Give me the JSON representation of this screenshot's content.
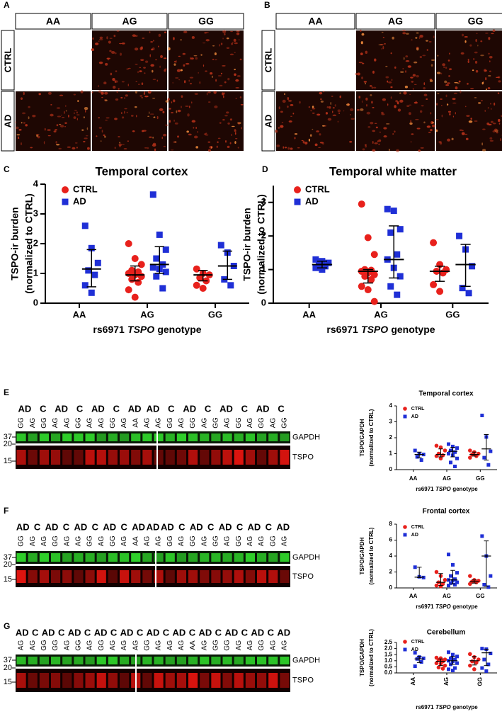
{
  "micrographs": [
    {
      "letter": "A",
      "columns": [
        "AA",
        "AG",
        "GG"
      ],
      "rows": [
        "CTRL",
        "AD"
      ]
    },
    {
      "letter": "B",
      "columns": [
        "AA",
        "AG",
        "GG"
      ],
      "rows": [
        "CTRL",
        "AD"
      ]
    }
  ],
  "blots": [
    {
      "letter": "E",
      "groups": [
        "AD",
        "C",
        "AD",
        "C",
        "AD",
        "C",
        "AD",
        "AD",
        "C",
        "AD",
        "C",
        "AD",
        "C",
        "AD",
        "C"
      ],
      "lanes": [
        "GG",
        "AG",
        "GG",
        "AG",
        "AG",
        "GG",
        "AG",
        "AG",
        "GG",
        "AG",
        "AA",
        "AG",
        "AG",
        "GG",
        "AG",
        "GG",
        "AG",
        "GG",
        "AG",
        "GG",
        "AG",
        "GG",
        "AG",
        "GG"
      ],
      "markers": [
        "37",
        "20",
        "15"
      ],
      "bands": [
        "GAPDH",
        "TSPO"
      ]
    },
    {
      "letter": "F",
      "groups": [
        "AD",
        "C",
        "AD",
        "C",
        "AD",
        "C",
        "AD",
        "C",
        "AD",
        "AD",
        "AD",
        "C",
        "AD",
        "C",
        "AD",
        "C",
        "AD",
        "C",
        "AD"
      ],
      "lanes": [
        "GG",
        "AG",
        "AG",
        "GG",
        "AG",
        "AG",
        "GG",
        "AG",
        "GG",
        "AG",
        "AA",
        "AG",
        "AG",
        "GG",
        "AG",
        "GG",
        "AG",
        "GG",
        "AG",
        "GG",
        "AG",
        "AG",
        "GG",
        "AG"
      ],
      "markers": [
        "37",
        "20",
        "15"
      ],
      "bands": [
        "GAPDH",
        "TSPO"
      ]
    },
    {
      "letter": "G",
      "groups": [
        "AD",
        "C",
        "AD",
        "C",
        "AD",
        "C",
        "AD",
        "C",
        "AD",
        "C",
        "AD",
        "C",
        "AD",
        "C",
        "AD",
        "C",
        "AD",
        "C",
        "AD",
        "C",
        "AD"
      ],
      "lanes": [
        "AG",
        "AG",
        "GG",
        "GG",
        "AG",
        "GG",
        "AG",
        "GG",
        "AG",
        "AG",
        "AG",
        "GG",
        "AG",
        "AG",
        "AG",
        "AA",
        "AG",
        "GG",
        "GG",
        "AG",
        "AG",
        "GG",
        "AG",
        "AG"
      ],
      "markers": [
        "37",
        "20",
        "15"
      ],
      "bands": [
        "GAPDH",
        "TSPO"
      ]
    }
  ],
  "chart_data": [
    {
      "type": "dot",
      "panel": "C",
      "title": "Temporal cortex",
      "ylabel": [
        "TSPO-ir burden",
        "(normalized to CTRL)"
      ],
      "xlabel": [
        "rs6971",
        "TSPO",
        "genotype"
      ],
      "categories": [
        "AA",
        "AG",
        "GG"
      ],
      "ylim": [
        0,
        4
      ],
      "yticks": [
        0,
        1,
        2,
        3,
        4
      ],
      "xrotate": false,
      "series": [
        {
          "name": "CTRL",
          "color": "#e8211c",
          "marker": "circle",
          "values": [
            [],
            [
              2.0,
              1.5,
              1.3,
              1.1,
              1.05,
              1.0,
              0.95,
              0.9,
              0.8,
              0.7,
              0.45,
              0.2
            ],
            [
              1.15,
              1.0,
              0.95,
              0.85,
              0.75,
              0.6,
              0.5
            ]
          ],
          "center": [
            null,
            0.95,
            0.95
          ],
          "lower": [
            null,
            0.75,
            0.75
          ],
          "upper": [
            null,
            1.25,
            1.1
          ]
        },
        {
          "name": "AD",
          "color": "#1f2fd6",
          "marker": "square",
          "values": [
            [
              2.6,
              1.85,
              1.35,
              1.1,
              0.95,
              0.6,
              0.35
            ],
            [
              3.65,
              2.3,
              1.8,
              1.5,
              1.3,
              1.2,
              1.15,
              1.05,
              0.9,
              0.5
            ],
            [
              1.95,
              1.7,
              1.25,
              0.8,
              0.6
            ]
          ],
          "center": [
            1.15,
            1.3,
            1.25
          ],
          "lower": [
            0.55,
            1.0,
            0.8
          ],
          "upper": [
            1.8,
            1.9,
            1.75
          ]
        }
      ]
    },
    {
      "type": "dot",
      "panel": "D",
      "title": "Temporal white matter",
      "ylabel": [
        "TSPO-ir burden",
        "(normalized to CTRL)"
      ],
      "xlabel": [
        "rs6971",
        "TSPO",
        "genotype"
      ],
      "categories": [
        "AA",
        "AG",
        "GG"
      ],
      "ylim": [
        0,
        3.5
      ],
      "yticks": [
        0,
        1,
        2,
        3
      ],
      "xrotate": false,
      "series": [
        {
          "name": "CTRL",
          "color": "#e8211c",
          "marker": "circle",
          "values": [
            [],
            [
              2.95,
              1.95,
              1.45,
              1.0,
              0.98,
              0.95,
              0.9,
              0.85,
              0.8,
              0.7,
              0.5,
              0.4,
              0.05
            ],
            [
              1.8,
              1.15,
              1.0,
              0.95,
              0.9,
              0.55,
              0.35
            ]
          ],
          "center": [
            null,
            0.95,
            0.95
          ],
          "lower": [
            null,
            0.6,
            0.65
          ],
          "upper": [
            null,
            1.0,
            1.1
          ]
        },
        {
          "name": "AD",
          "color": "#1f2fd6",
          "marker": "square",
          "values": [
            [
              1.3,
              1.25,
              1.2,
              1.15,
              1.1,
              1.05,
              1.0
            ],
            [
              2.8,
              2.75,
              2.2,
              2.1,
              1.45,
              1.3,
              1.05,
              0.8,
              0.5,
              0.25
            ],
            [
              2.0,
              1.6,
              1.1,
              0.45,
              0.3
            ]
          ],
          "center": [
            1.15,
            1.3,
            1.15
          ],
          "lower": [
            1.05,
            0.75,
            0.5
          ],
          "upper": [
            1.25,
            2.3,
            1.75
          ]
        }
      ]
    },
    {
      "type": "dot",
      "title": "Temporal cortex",
      "ylabel": [
        "TSPO/GAPDH",
        "(normalized to CTRL)"
      ],
      "xlabel": [
        "rs6971",
        "TSPO",
        "genotype"
      ],
      "categories": [
        "AA",
        "AG",
        "GG"
      ],
      "ylim": [
        0,
        4
      ],
      "yticks": [
        0,
        1,
        2,
        3,
        4
      ],
      "xrotate": false,
      "series": [
        {
          "name": "CTRL",
          "color": "#e8211c",
          "marker": "circle",
          "values": [
            [],
            [
              1.5,
              1.4,
              1.2,
              1.0,
              0.9,
              0.85,
              0.7
            ],
            [
              1.2,
              1.1,
              1.0,
              0.95,
              0.85,
              0.75
            ]
          ],
          "center": [
            null,
            0.95,
            0.95
          ],
          "lower": [
            null,
            0.8,
            0.85
          ],
          "upper": [
            null,
            1.3,
            1.1
          ]
        },
        {
          "name": "AD",
          "color": "#1f2fd6",
          "marker": "square",
          "values": [
            [
              1.2,
              1.0,
              0.95,
              0.8,
              0.6
            ],
            [
              1.6,
              1.45,
              1.35,
              1.2,
              1.1,
              1.0,
              0.9,
              0.7,
              0.45,
              0.2
            ],
            [
              3.4,
              2.05,
              1.15,
              0.75,
              0.3
            ]
          ],
          "center": [
            0.95,
            1.15,
            1.3
          ],
          "lower": [
            0.75,
            0.8,
            0.6
          ],
          "upper": [
            1.1,
            1.4,
            2.2
          ]
        }
      ]
    },
    {
      "type": "dot",
      "title": "Frontal cortex",
      "ylabel": [
        "TSPO/GAPDH",
        "(normalized to CTRL)"
      ],
      "xlabel": [
        "rs6971",
        "TSPO",
        "genotype"
      ],
      "categories": [
        "AA",
        "AG",
        "GG"
      ],
      "ylim": [
        0,
        8
      ],
      "yticks": [
        0,
        2,
        4,
        6,
        8
      ],
      "xrotate": false,
      "series": [
        {
          "name": "CTRL",
          "color": "#e8211c",
          "marker": "circle",
          "values": [
            [],
            [
              2.0,
              1.5,
              1.0,
              0.7,
              0.5,
              0.3,
              0.2
            ],
            [
              1.5,
              1.0,
              0.9,
              0.8,
              0.7,
              0.5
            ]
          ],
          "center": [
            null,
            0.7,
            0.8
          ],
          "lower": [
            null,
            0.3,
            0.6
          ],
          "upper": [
            null,
            1.8,
            1.0
          ]
        },
        {
          "name": "AD",
          "color": "#1f2fd6",
          "marker": "square",
          "values": [
            [
              2.6,
              1.4,
              1.3
            ],
            [
              4.2,
              2.9,
              1.9,
              1.5,
              1.1,
              1.0,
              0.9,
              0.7,
              0.6,
              0.4,
              0.3
            ],
            [
              6.5,
              4.0,
              1.5,
              0.4,
              0.1
            ]
          ],
          "center": [
            1.35,
            1.0,
            4.0
          ],
          "lower": [
            1.3,
            0.5,
            0.2
          ],
          "upper": [
            2.6,
            2.2,
            5.9
          ]
        }
      ]
    },
    {
      "type": "dot",
      "title": "Cerebellum",
      "ylabel": [
        "TSPO/GAPDH",
        "(normalized to CTRL)"
      ],
      "xlabel": [
        "rs6971",
        "TSPO",
        "genotype"
      ],
      "categories": [
        "AA",
        "AG",
        "GG"
      ],
      "ylim": [
        0,
        2.5
      ],
      "yticks": [
        {
          "value": 0,
          "label": "0.0"
        },
        {
          "value": 0.5,
          "label": "0.5"
        },
        {
          "value": 1,
          "label": "1.0"
        },
        {
          "value": 1.5,
          "label": "1.5"
        },
        {
          "value": 2,
          "label": "2.0"
        },
        {
          "value": 2.5,
          "label": "2.5"
        }
      ],
      "xrotate": true,
      "series": [
        {
          "name": "CTRL",
          "color": "#e8211c",
          "marker": "circle",
          "values": [
            [],
            [
              1.25,
              1.2,
              1.1,
              1.05,
              0.95,
              0.8,
              0.75,
              0.6,
              0.45,
              0.35
            ],
            [
              1.55,
              1.3,
              1.1,
              0.95,
              0.85,
              0.6,
              0.3
            ]
          ],
          "center": [
            null,
            0.95,
            1.0
          ],
          "lower": [
            null,
            0.6,
            0.65
          ],
          "upper": [
            null,
            1.15,
            1.35
          ]
        },
        {
          "name": "AD",
          "color": "#1f2fd6",
          "marker": "square",
          "values": [
            [
              1.65,
              1.3,
              1.2,
              1.15,
              0.9,
              0.55
            ],
            [
              1.7,
              1.5,
              1.35,
              1.2,
              1.1,
              1.0,
              0.95,
              0.8,
              0.7,
              0.4,
              0.3,
              0.2
            ],
            [
              2.0,
              1.95,
              1.6,
              1.1,
              0.7,
              0.4,
              0.15
            ]
          ],
          "center": [
            1.15,
            1.0,
            1.65
          ],
          "lower": [
            0.85,
            0.7,
            0.6
          ],
          "upper": [
            1.35,
            1.35,
            1.95
          ]
        }
      ]
    }
  ]
}
